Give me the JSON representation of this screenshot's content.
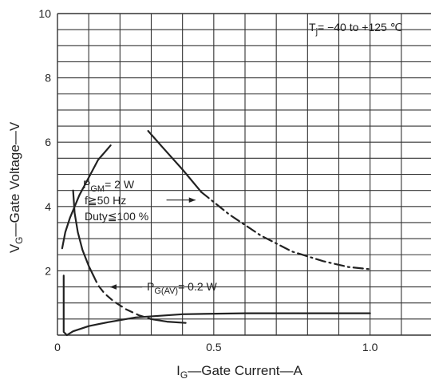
{
  "chart_data": {
    "type": "line",
    "title": "",
    "xlabel": {
      "main": "I",
      "sub": "G",
      "rest": "—Gate Current—A"
    },
    "ylabel": {
      "main": "V",
      "sub": "G",
      "rest": "—Gate Voltage—V"
    },
    "xlim": [
      0,
      1.2
    ],
    "ylim": [
      0,
      10
    ],
    "grid": true,
    "x_tick_labels": [
      {
        "value": 0,
        "label": "0"
      },
      {
        "value": 0.5,
        "label": "0.5"
      },
      {
        "value": 1.0,
        "label": "1.0"
      }
    ],
    "y_tick_labels": [
      {
        "value": 2,
        "label": "2"
      },
      {
        "value": 4,
        "label": "4"
      },
      {
        "value": 6,
        "label": "6"
      },
      {
        "value": 8,
        "label": "8"
      },
      {
        "value": 10,
        "label": "10"
      }
    ],
    "annotations": {
      "temperature": "T",
      "temperature_sub": "j",
      "temperature_rest": "= −40 to +125 ℃",
      "pgm_main": "P",
      "pgm_sub": "GM",
      "pgm_rest": "= 2 W",
      "frequency": "f≧50 Hz",
      "duty": "Duty≦100 %",
      "pgav_main": "P",
      "pgav_sub": "G(AV)",
      "pgav_rest": "= 0.2 W"
    },
    "series": [
      {
        "key": "upper_limit",
        "style": "solid",
        "points": [
          [
            0.015,
            2.7
          ],
          [
            0.025,
            3.2
          ],
          [
            0.04,
            3.65
          ],
          [
            0.07,
            4.35
          ],
          [
            0.1,
            4.9
          ],
          [
            0.13,
            5.45
          ],
          [
            0.17,
            5.9
          ]
        ]
      },
      {
        "key": "pgm_curve_solid",
        "style": "solid",
        "points": [
          [
            0.29,
            6.35
          ],
          [
            0.34,
            5.8
          ],
          [
            0.4,
            5.15
          ],
          [
            0.46,
            4.45
          ]
        ]
      },
      {
        "key": "pgm_curve_dashed",
        "style": "dashdot",
        "points": [
          [
            0.46,
            4.45
          ],
          [
            0.55,
            3.75
          ],
          [
            0.65,
            3.1
          ],
          [
            0.75,
            2.6
          ],
          [
            0.85,
            2.3
          ],
          [
            0.93,
            2.12
          ],
          [
            1.0,
            2.05
          ]
        ]
      },
      {
        "key": "pgav_curve_solid",
        "style": "solid",
        "points": [
          [
            0.05,
            4.5
          ],
          [
            0.055,
            3.8
          ],
          [
            0.065,
            3.2
          ],
          [
            0.08,
            2.65
          ],
          [
            0.1,
            2.15
          ],
          [
            0.115,
            1.85
          ]
        ]
      },
      {
        "key": "pgav_curve_dashed",
        "style": "dashed",
        "points": [
          [
            0.115,
            1.85
          ],
          [
            0.13,
            1.55
          ],
          [
            0.15,
            1.3
          ],
          [
            0.18,
            1.05
          ],
          [
            0.22,
            0.8
          ],
          [
            0.26,
            0.62
          ],
          [
            0.3,
            0.5
          ]
        ]
      },
      {
        "key": "pgav_curve_tail",
        "style": "solid",
        "points": [
          [
            0.3,
            0.5
          ],
          [
            0.35,
            0.42
          ],
          [
            0.41,
            0.38
          ]
        ]
      },
      {
        "key": "lower_limit",
        "style": "solid",
        "points": [
          [
            0.03,
            0.0
          ],
          [
            0.05,
            0.12
          ],
          [
            0.1,
            0.28
          ],
          [
            0.16,
            0.4
          ],
          [
            0.25,
            0.55
          ],
          [
            0.4,
            0.65
          ],
          [
            0.6,
            0.68
          ],
          [
            1.0,
            0.68
          ]
        ]
      },
      {
        "key": "spike_solid",
        "style": "solid",
        "points": [
          [
            0.02,
            1.85
          ],
          [
            0.02,
            0.1
          ],
          [
            0.03,
            0.0
          ]
        ]
      },
      {
        "key": "arrow_pgm",
        "style": "arrow",
        "points": [
          [
            0.35,
            4.2
          ],
          [
            0.44,
            4.2
          ]
        ]
      },
      {
        "key": "arrow_pgav",
        "style": "arrow",
        "points": [
          [
            0.27,
            1.5
          ],
          [
            0.17,
            1.5
          ]
        ]
      }
    ],
    "colors": {
      "ink": "#222222",
      "grid": "#333333",
      "background": "#ffffff"
    }
  }
}
